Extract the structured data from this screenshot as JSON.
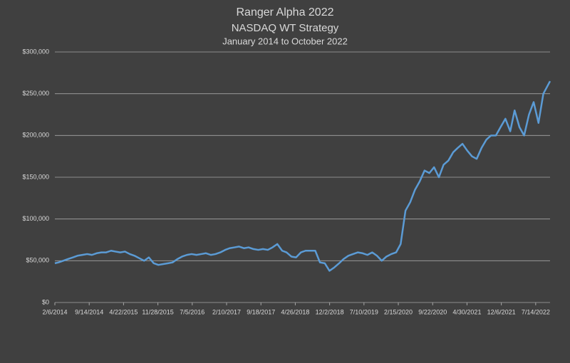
{
  "chart_data": {
    "type": "line",
    "title": "Ranger Alpha 2022",
    "subtitle": "NASDAQ WT Strategy",
    "date_range": "January 2014 to October 2022",
    "color": "#5b9bd5",
    "grid": true,
    "x": [
      "2/6/2014",
      "3/1/2014",
      "4/1/2014",
      "5/1/2014",
      "6/1/2014",
      "7/1/2014",
      "8/1/2014",
      "9/1/2014",
      "10/1/2014",
      "11/1/2014",
      "12/1/2014",
      "1/1/2015",
      "2/1/2015",
      "3/1/2015",
      "4/1/2015",
      "5/1/2015",
      "6/1/2015",
      "7/1/2015",
      "8/1/2015",
      "9/1/2015",
      "10/1/2015",
      "11/1/2015",
      "12/1/2015",
      "1/1/2016",
      "2/1/2016",
      "3/1/2016",
      "4/1/2016",
      "5/1/2016",
      "6/1/2016",
      "7/1/2016",
      "8/1/2016",
      "9/1/2016",
      "10/1/2016",
      "11/1/2016",
      "12/1/2016",
      "1/1/2017",
      "2/1/2017",
      "3/1/2017",
      "4/1/2017",
      "5/1/2017",
      "6/1/2017",
      "7/1/2017",
      "8/1/2017",
      "9/1/2017",
      "10/1/2017",
      "11/1/2017",
      "12/1/2017",
      "1/1/2018",
      "2/1/2018",
      "3/1/2018",
      "4/1/2018",
      "5/1/2018",
      "6/1/2018",
      "7/1/2018",
      "8/1/2018",
      "9/1/2018",
      "10/1/2018",
      "11/1/2018",
      "12/1/2018",
      "1/1/2019",
      "2/1/2019",
      "3/1/2019",
      "4/1/2019",
      "5/1/2019",
      "6/1/2019",
      "7/1/2019",
      "8/1/2019",
      "9/1/2019",
      "10/1/2019",
      "11/1/2019",
      "12/1/2019",
      "1/1/2020",
      "2/1/2020",
      "3/1/2020",
      "4/1/2020",
      "5/1/2020",
      "6/1/2020",
      "7/1/2020",
      "8/1/2020",
      "9/1/2020",
      "10/1/2020",
      "11/1/2020",
      "12/1/2020",
      "1/1/2021",
      "2/1/2021",
      "3/1/2021",
      "4/1/2021",
      "5/1/2021",
      "6/1/2021",
      "7/1/2021",
      "8/1/2021",
      "9/1/2021",
      "10/1/2021",
      "11/1/2021",
      "12/1/2021",
      "1/1/2022",
      "2/1/2022",
      "3/1/2022",
      "4/1/2022",
      "5/1/2022",
      "6/1/2022",
      "7/1/2022",
      "8/1/2022",
      "9/1/2022",
      "10/14/2022"
    ],
    "values": [
      47000,
      48000,
      50000,
      52000,
      54000,
      56000,
      57000,
      58000,
      57000,
      59000,
      60000,
      60000,
      62000,
      61000,
      60000,
      61000,
      58000,
      56000,
      53000,
      50000,
      54000,
      47000,
      45000,
      46000,
      47000,
      48000,
      52000,
      55000,
      57000,
      58000,
      57000,
      58000,
      59000,
      57000,
      58000,
      60000,
      63000,
      65000,
      66000,
      67000,
      65000,
      66000,
      64000,
      63000,
      64000,
      63000,
      66000,
      70000,
      62000,
      60000,
      55000,
      54000,
      60000,
      62000,
      62000,
      62000,
      48000,
      47000,
      38000,
      42000,
      47000,
      52000,
      56000,
      58000,
      60000,
      59000,
      57000,
      60000,
      56000,
      50000,
      55000,
      58000,
      60000,
      70000,
      110000,
      120000,
      135000,
      145000,
      158000,
      155000,
      162000,
      150000,
      165000,
      170000,
      180000,
      185000,
      190000,
      182000,
      175000,
      172000,
      185000,
      195000,
      200000,
      200000,
      210000,
      220000,
      205000,
      230000,
      210000,
      200000,
      225000,
      240000,
      215000,
      250000,
      265000
    ],
    "xlim": [
      "2/6/2014",
      "10/14/2022"
    ],
    "xticks": [
      "2/6/2014",
      "9/14/2014",
      "4/22/2015",
      "11/28/2015",
      "7/5/2016",
      "2/10/2017",
      "9/18/2017",
      "4/26/2018",
      "12/2/2018",
      "7/10/2019",
      "2/15/2020",
      "9/22/2020",
      "4/30/2021",
      "12/6/2021",
      "7/14/2022"
    ],
    "ylim": [
      0,
      300000
    ],
    "yticks": [
      {
        "value": 0,
        "label": "$0"
      },
      {
        "value": 50000,
        "label": "$50,000"
      },
      {
        "value": 100000,
        "label": "$100,000"
      },
      {
        "value": 150000,
        "label": "$150,000"
      },
      {
        "value": 200000,
        "label": "$200,000"
      },
      {
        "value": 250000,
        "label": "$250,000"
      },
      {
        "value": 300000,
        "label": "$300,000"
      }
    ]
  }
}
